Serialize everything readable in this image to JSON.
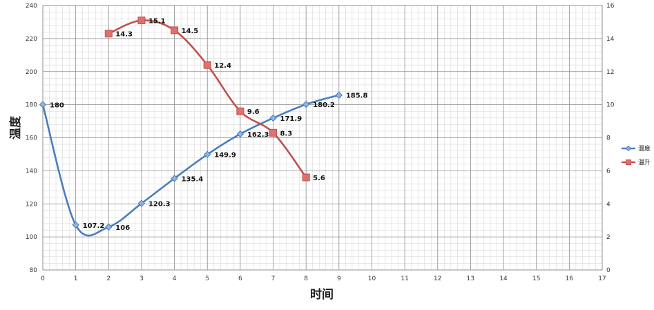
{
  "chart_data": {
    "type": "line",
    "xlabel": "时间",
    "ylabel": "温度",
    "x_ticks": [
      0,
      1,
      2,
      3,
      4,
      5,
      6,
      7,
      8,
      9,
      10,
      11,
      12,
      13,
      14,
      15,
      16,
      17
    ],
    "xlim": [
      0,
      17
    ],
    "ylim": [
      80,
      240
    ],
    "y_ticks": [
      80,
      100,
      120,
      140,
      160,
      180,
      200,
      220,
      240
    ],
    "y2lim": [
      0,
      16
    ],
    "y2_ticks": [
      0,
      2,
      4,
      6,
      8,
      10,
      12,
      14,
      16
    ],
    "grid": true,
    "legend_position": "right",
    "series": [
      {
        "name": "温度",
        "axis": "left",
        "color": "#4A7EBB",
        "marker": "diamond",
        "smooth": true,
        "x": [
          0,
          1,
          2,
          3,
          4,
          5,
          6,
          7,
          8,
          9
        ],
        "values": [
          180,
          107.2,
          106,
          120.3,
          135.4,
          149.9,
          162.3,
          171.9,
          180.2,
          185.8
        ],
        "labels": [
          "180",
          "107.2",
          "106",
          "120.3",
          "135.4",
          "149.9",
          "162.3",
          "171.9",
          "180.2",
          "185.8"
        ]
      },
      {
        "name": "温升",
        "axis": "right",
        "color": "#C0504D",
        "marker": "square",
        "smooth": true,
        "x": [
          2,
          3,
          4,
          5,
          6,
          7,
          8
        ],
        "values": [
          14.3,
          15.1,
          14.5,
          12.4,
          9.6,
          8.3,
          5.6
        ],
        "labels": [
          "14.3",
          "15.1",
          "14.5",
          "12.4",
          "9.6",
          "8.3",
          "5.6"
        ]
      }
    ]
  }
}
